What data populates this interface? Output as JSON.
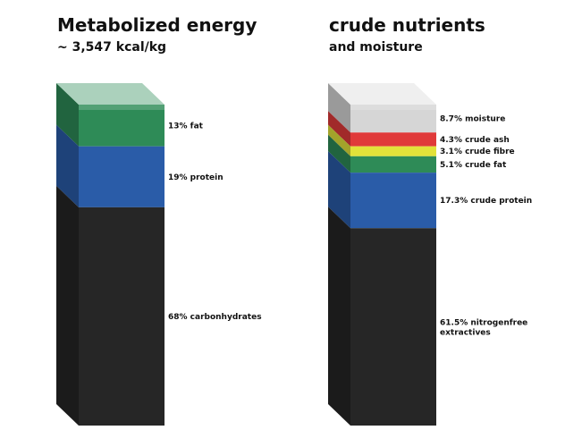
{
  "chart_data": [
    {
      "type": "stacked-bar-3d",
      "title": "Metabolized energy",
      "subtitle": "~ 3,547 kcal/kg",
      "unit": "%",
      "segments": [
        {
          "label": "13% fat",
          "value": 13,
          "color": "#2e8b57"
        },
        {
          "label": "19% protein",
          "value": 19,
          "color": "#2a5ca8"
        },
        {
          "label": "68% carbonhydrates",
          "value": 68,
          "color": "#262626"
        }
      ]
    },
    {
      "type": "stacked-bar-3d",
      "title": "crude nutrients",
      "subtitle": "and moisture",
      "unit": "%",
      "segments": [
        {
          "label": "8.7% moisture",
          "value": 8.7,
          "color": "#d6d6d6"
        },
        {
          "label": "4.3% crude ash",
          "value": 4.3,
          "color": "#e03a3a"
        },
        {
          "label": "3.1% crude fibre",
          "value": 3.1,
          "color": "#e2e23a"
        },
        {
          "label": "5.1% crude fat",
          "value": 5.1,
          "color": "#2e8b57"
        },
        {
          "label": "17.3% crude protein",
          "value": 17.3,
          "color": "#2a5ca8"
        },
        {
          "label": "61.5% nitrogenfree extractives",
          "value": 61.5,
          "color": "#262626"
        }
      ]
    }
  ]
}
